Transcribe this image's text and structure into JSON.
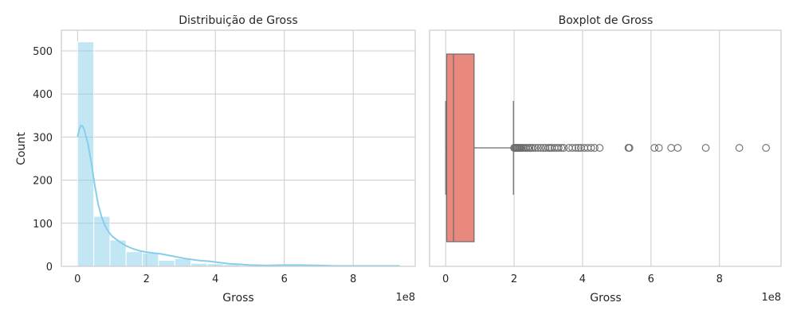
{
  "chart_data": [
    {
      "type": "histogram",
      "title": "Distribuição de Gross",
      "xlabel": "Gross",
      "ylabel": "Count",
      "x_offset_label": "1e8",
      "xlim": [
        -0.47,
        9.8
      ],
      "ylim": [
        0,
        548
      ],
      "xticks": [
        0,
        2,
        4,
        6,
        8
      ],
      "yticks": [
        0,
        100,
        200,
        300,
        400,
        500
      ],
      "grid": true,
      "bar_color": "#87ceeb",
      "kde_color": "#87ceeb",
      "bins": [
        {
          "x0": 0.0,
          "x1": 0.47,
          "count": 521
        },
        {
          "x0": 0.47,
          "x1": 0.94,
          "count": 116
        },
        {
          "x0": 0.94,
          "x1": 1.41,
          "count": 61
        },
        {
          "x0": 1.41,
          "x1": 1.88,
          "count": 34
        },
        {
          "x0": 1.88,
          "x1": 2.35,
          "count": 31
        },
        {
          "x0": 2.35,
          "x1": 2.82,
          "count": 14
        },
        {
          "x0": 2.82,
          "x1": 3.29,
          "count": 18
        },
        {
          "x0": 3.29,
          "x1": 3.76,
          "count": 7
        },
        {
          "x0": 3.76,
          "x1": 4.23,
          "count": 6
        },
        {
          "x0": 4.23,
          "x1": 4.7,
          "count": 4
        },
        {
          "x0": 4.7,
          "x1": 5.17,
          "count": 1
        },
        {
          "x0": 5.17,
          "x1": 5.64,
          "count": 2
        },
        {
          "x0": 5.64,
          "x1": 6.11,
          "count": 1
        },
        {
          "x0": 6.11,
          "x1": 6.58,
          "count": 3
        },
        {
          "x0": 6.58,
          "x1": 7.05,
          "count": 2
        },
        {
          "x0": 7.05,
          "x1": 7.52,
          "count": 0
        },
        {
          "x0": 7.52,
          "x1": 7.99,
          "count": 1
        },
        {
          "x0": 7.99,
          "x1": 8.46,
          "count": 0
        },
        {
          "x0": 8.46,
          "x1": 8.93,
          "count": 1
        },
        {
          "x0": 8.93,
          "x1": 9.4,
          "count": 1
        }
      ],
      "kde": {
        "x": [
          0.0,
          0.05,
          0.1,
          0.15,
          0.2,
          0.3,
          0.4,
          0.5,
          0.6,
          0.7,
          0.8,
          0.9,
          1.0,
          1.2,
          1.4,
          1.6,
          1.8,
          2.0,
          2.2,
          2.4,
          2.6,
          2.8,
          3.0,
          3.2,
          3.4,
          3.6,
          3.8,
          4.0,
          4.2,
          4.4,
          4.6,
          4.8,
          5.0,
          5.5,
          6.0,
          6.5,
          7.0,
          7.5,
          8.0,
          8.5,
          9.0,
          9.35
        ],
        "y": [
          300,
          318,
          327,
          325,
          315,
          285,
          240,
          188,
          143,
          114,
          94,
          80,
          70,
          58,
          48,
          41,
          36,
          33,
          31,
          29,
          26,
          23,
          20,
          17,
          15,
          13,
          12,
          10,
          8,
          6,
          5,
          4,
          3,
          2,
          3,
          3,
          2,
          1,
          1,
          1,
          1,
          1
        ]
      }
    },
    {
      "type": "boxplot",
      "title": "Boxplot de Gross",
      "xlabel": "Gross",
      "x_offset_label": "1e8",
      "xlim": [
        -0.47,
        9.8
      ],
      "xticks": [
        0,
        2,
        4,
        6,
        8
      ],
      "grid": true,
      "box_color": "#e9897e",
      "stats": {
        "whisker_low": 0.0,
        "q1": 0.03,
        "median": 0.23,
        "q3": 0.83,
        "whisker_high": 1.98
      },
      "outliers": [
        2.0,
        2.03,
        2.06,
        2.09,
        2.12,
        2.15,
        2.18,
        2.22,
        2.26,
        2.3,
        2.35,
        2.4,
        2.45,
        2.5,
        2.55,
        2.62,
        2.7,
        2.78,
        2.85,
        2.92,
        3.0,
        3.05,
        3.1,
        3.18,
        3.25,
        3.3,
        3.38,
        3.45,
        3.6,
        3.7,
        3.8,
        3.88,
        3.95,
        4.05,
        4.15,
        4.25,
        4.35,
        4.5,
        5.34,
        5.37,
        6.1,
        6.23,
        6.59,
        6.78,
        7.6,
        8.58,
        9.36
      ]
    }
  ]
}
